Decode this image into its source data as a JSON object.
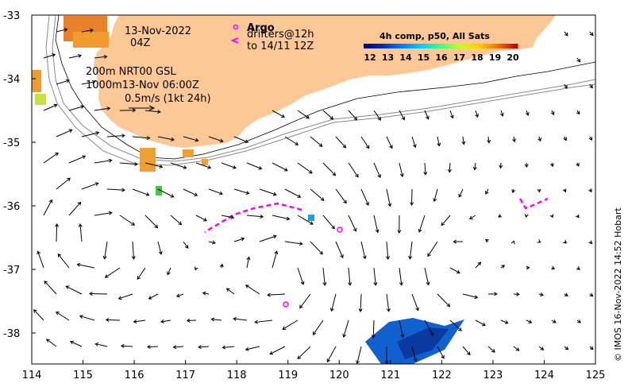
{
  "map": {
    "date_line1": "13-Nov-2022",
    "date_line2": "04Z",
    "depth_line1": "200m  NRT00 GSL",
    "depth_line2": "1000m13-Nov 06:00Z",
    "scale_label": "0.5m/s (1kt 24h)",
    "argo_label": "Argo",
    "drifters_label": "drifters@12h",
    "drifters_to": "to 14/11 12Z",
    "colorbar_title": "4h comp, p50, All Sats",
    "colorbar_ticks": [
      "12",
      "13",
      "14",
      "15",
      "16",
      "17",
      "18",
      "19",
      "20"
    ],
    "colorbar_colors": [
      "#00007f",
      "#0030c0",
      "#0080ff",
      "#00d0ff",
      "#40ff80",
      "#c0ff20",
      "#ffd000",
      "#ff7000",
      "#c00000"
    ],
    "credit": "© IMOS 16-Nov-2022 14:52 Hobart",
    "lon_ticks": [
      "114",
      "115",
      "116",
      "117",
      "118",
      "119",
      "120",
      "121",
      "122",
      "123",
      "124",
      "125"
    ],
    "lat_ticks": [
      "-33",
      "-34",
      "-35",
      "-36",
      "-37",
      "-38"
    ],
    "land_color": "#fcc896",
    "drifter_color": "#ff00ff"
  }
}
